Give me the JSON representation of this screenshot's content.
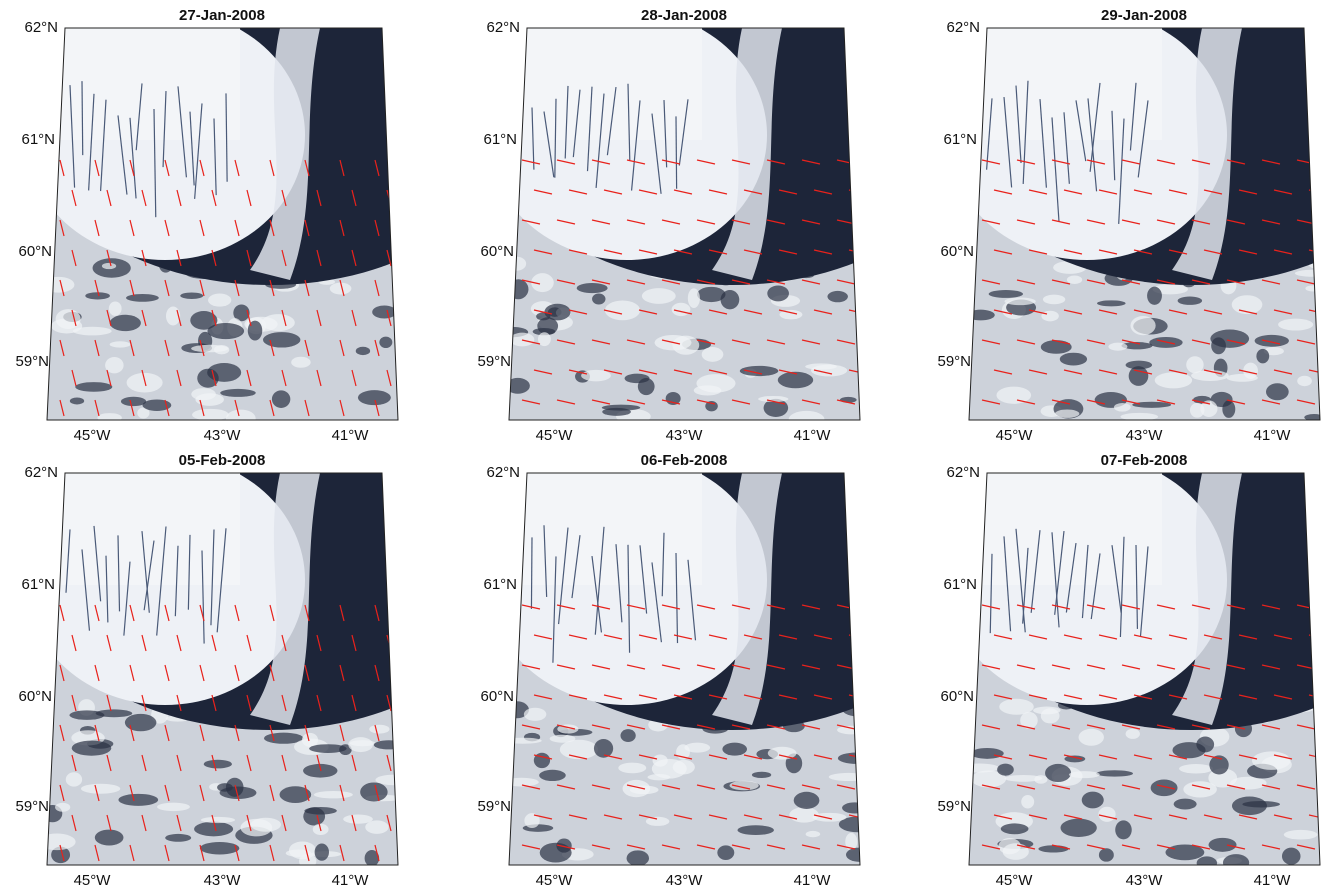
{
  "panels": [
    {
      "title": "27-Jan-2008"
    },
    {
      "title": "28-Jan-2008"
    },
    {
      "title": "29-Jan-2008"
    },
    {
      "title": "05-Feb-2008"
    },
    {
      "title": "06-Feb-2008"
    },
    {
      "title": "07-Feb-2008"
    }
  ],
  "lat_labels": [
    "62°N",
    "61°N",
    "60°N",
    "59°N"
  ],
  "lon_labels": [
    "45°W",
    "43°W",
    "41°W"
  ]
}
